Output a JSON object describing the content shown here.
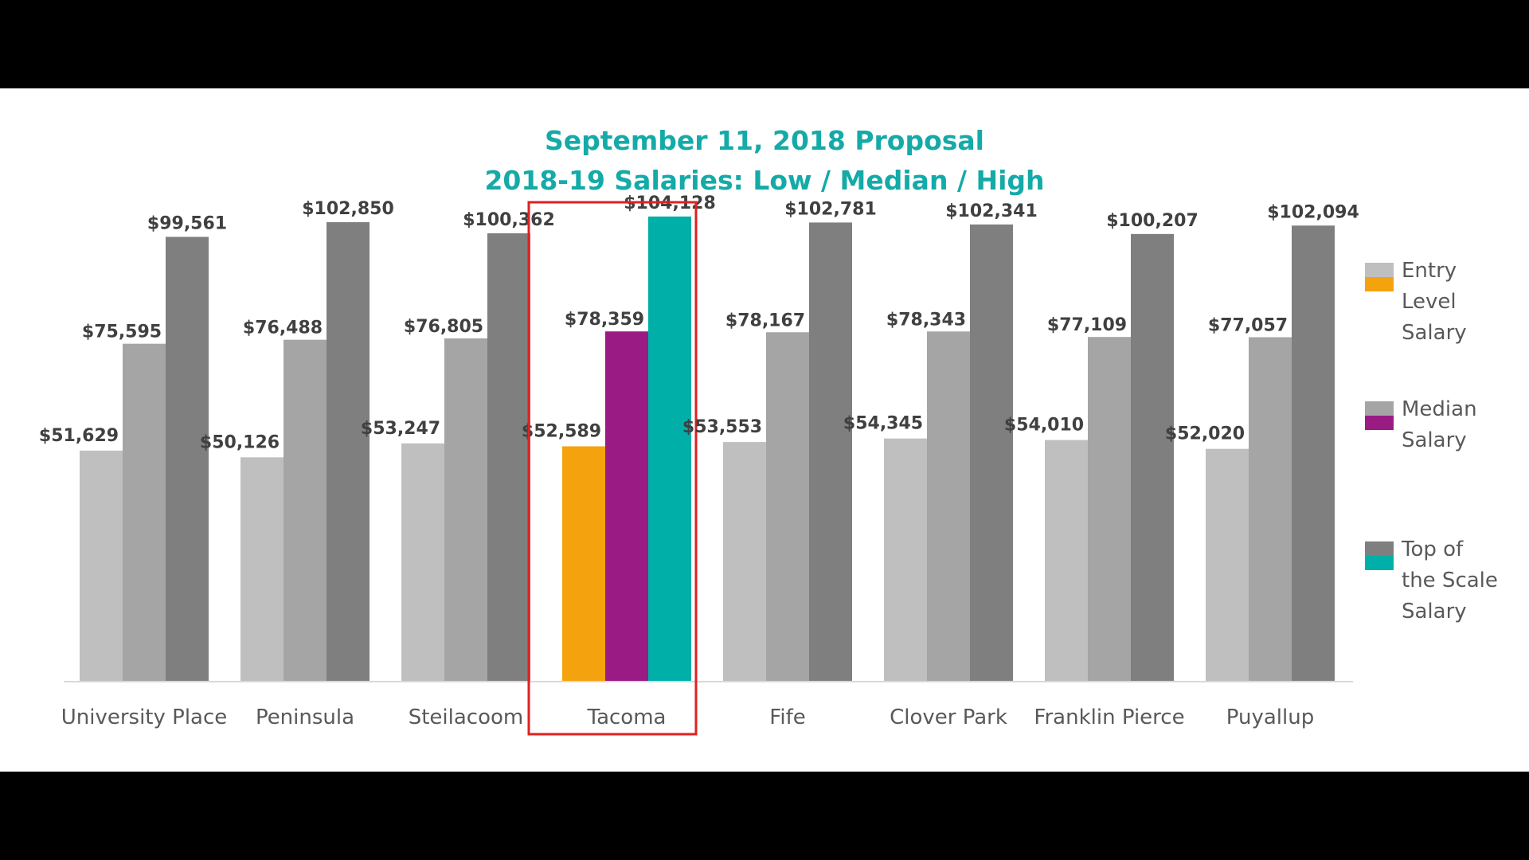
{
  "chart_data": {
    "type": "bar",
    "title": "September 11, 2018 Proposal",
    "subtitle": "2018-19 Salaries: Low / Median / High",
    "categories": [
      "University Place",
      "Peninsula",
      "Steilacoom",
      "Tacoma",
      "Fife",
      "Clover Park",
      "Franklin Pierce",
      "Puyallup"
    ],
    "series": [
      {
        "name": "Entry Level Salary",
        "legend_lines": [
          "Entry",
          "Level",
          "Salary"
        ],
        "values": [
          51629,
          50126,
          53247,
          52589,
          53553,
          54345,
          54010,
          52020
        ],
        "labels": [
          "$51,629",
          "$50,126",
          "$53,247",
          "$52,589",
          "$53,553",
          "$54,345",
          "$54,010",
          "$52,020"
        ],
        "color": "#bfbfbf",
        "highlight_color": "#f4a20e"
      },
      {
        "name": "Median Salary",
        "legend_lines": [
          "Median",
          "Salary"
        ],
        "values": [
          75595,
          76488,
          76805,
          78359,
          78167,
          78343,
          77109,
          77057
        ],
        "labels": [
          "$75,595",
          "$76,488",
          "$76,805",
          "$78,359",
          "$78,167",
          "$78,343",
          "$77,109",
          "$77,057"
        ],
        "color": "#a5a5a5",
        "highlight_color": "#9b1b84"
      },
      {
        "name": "Top of the Scale Salary",
        "legend_lines": [
          "Top of",
          "the Scale",
          "Salary"
        ],
        "values": [
          99561,
          102850,
          100362,
          104128,
          102781,
          102341,
          100207,
          102094
        ],
        "labels": [
          "$99,561",
          "$102,850",
          "$100,362",
          "$104,128",
          "$102,781",
          "$102,341",
          "$100,207",
          "$102,094"
        ],
        "color": "#7f7f7f",
        "highlight_color": "#00b0a8"
      }
    ],
    "highlight_category": "Tacoma",
    "ylim": [
      0,
      105000
    ],
    "grid": false,
    "legend_position": "right",
    "colors": {
      "title": "#14aaa8",
      "highlight_box": "#e02020",
      "axis": "#d9d9d9"
    }
  }
}
